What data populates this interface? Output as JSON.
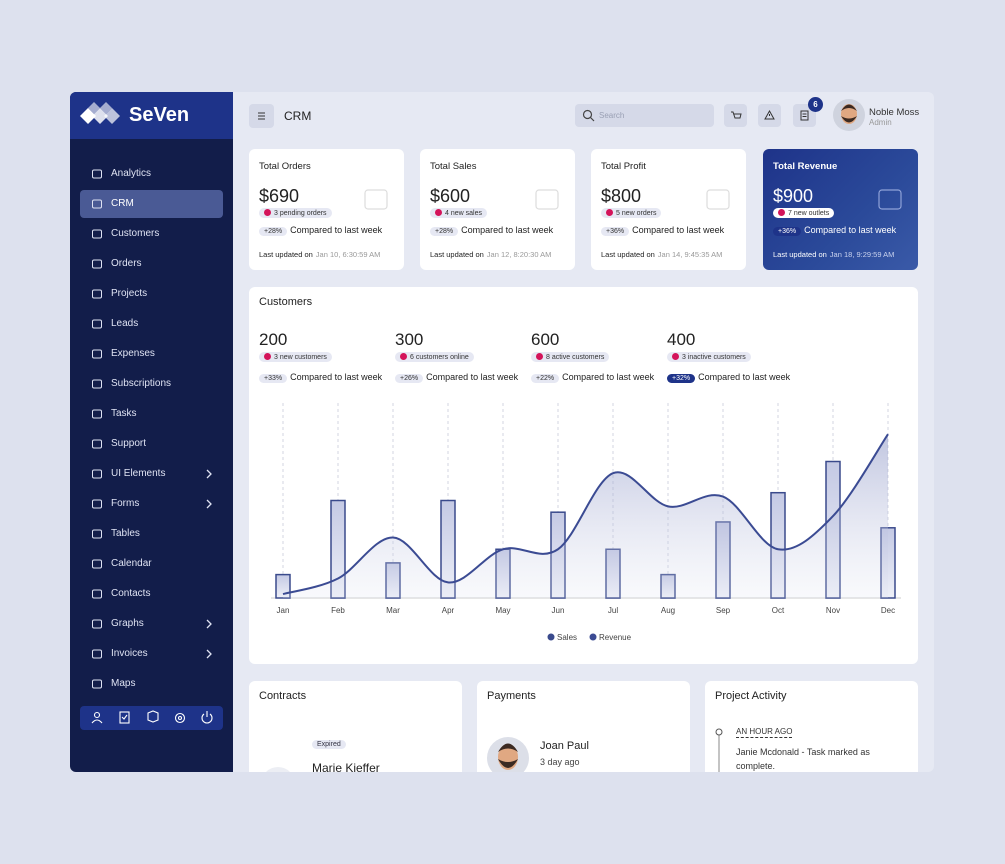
{
  "brand": "SeVen",
  "sidebar": {
    "items": [
      {
        "label": "Analytics"
      },
      {
        "label": "CRM",
        "active": true
      },
      {
        "label": "Customers"
      },
      {
        "label": "Orders"
      },
      {
        "label": "Projects"
      },
      {
        "label": "Leads"
      },
      {
        "label": "Expenses"
      },
      {
        "label": "Subscriptions"
      },
      {
        "label": "Tasks"
      },
      {
        "label": "Support"
      },
      {
        "label": "UI Elements",
        "submenu": true
      },
      {
        "label": "Forms",
        "submenu": true
      },
      {
        "label": "Tables"
      },
      {
        "label": "Calendar"
      },
      {
        "label": "Contacts"
      },
      {
        "label": "Graphs",
        "submenu": true
      },
      {
        "label": "Invoices",
        "submenu": true
      },
      {
        "label": "Maps"
      }
    ]
  },
  "header": {
    "title": "CRM",
    "search_placeholder": "Search",
    "notifications": 6,
    "user": {
      "name": "Noble Moss",
      "role": "Admin"
    }
  },
  "stats": [
    {
      "title": "Total Orders",
      "value": "$690",
      "badge": "3 pending orders",
      "change": "+28%",
      "compare": "Compared to last week",
      "updated_label": "Last updated on",
      "updated": "Jan 10, 6:30:59 AM"
    },
    {
      "title": "Total Sales",
      "value": "$600",
      "badge": "4 new sales",
      "change": "+28%",
      "compare": "Compared to last week",
      "updated_label": "Last updated on",
      "updated": "Jan 12, 8:20:30 AM"
    },
    {
      "title": "Total Profit",
      "value": "$800",
      "badge": "5 new orders",
      "change": "+36%",
      "compare": "Compared to last week",
      "updated_label": "Last updated on",
      "updated": "Jan 14, 9:45:35 AM"
    },
    {
      "title": "Total Revenue",
      "value": "$900",
      "badge": "7 new outlets",
      "change": "+36%",
      "compare": "Compared to last week",
      "updated_label": "Last updated on",
      "updated": "Jan 18, 9:29:59 AM",
      "highlight": true
    }
  ],
  "customers": {
    "title": "Customers",
    "metrics": [
      {
        "value": "200",
        "badge": "3 new customers",
        "change": "+33%",
        "compare": "Compared to last week"
      },
      {
        "value": "300",
        "badge": "6 customers online",
        "change": "+26%",
        "compare": "Compared to last week"
      },
      {
        "value": "600",
        "badge": "8 active customers",
        "change": "+22%",
        "compare": "Compared to last week"
      },
      {
        "value": "400",
        "badge": "3 inactive customers",
        "change": "+32%",
        "compare": "Compared to last week",
        "highlight": true
      }
    ]
  },
  "chart_data": {
    "type": "bar-line",
    "categories": [
      "Jan",
      "Feb",
      "Mar",
      "Apr",
      "May",
      "Jun",
      "Jul",
      "Aug",
      "Sep",
      "Oct",
      "Nov",
      "Dec"
    ],
    "series": [
      {
        "name": "Sales",
        "type": "bar",
        "color": "#3a4a8c",
        "values": [
          12,
          50,
          18,
          50,
          25,
          44,
          25,
          12,
          39,
          54,
          70,
          36
        ]
      },
      {
        "name": "Revenue",
        "type": "line",
        "color": "#3b4b93",
        "values": [
          2,
          10,
          31,
          8,
          25,
          25,
          64,
          47,
          52,
          25,
          42,
          84
        ]
      }
    ],
    "ylim": [
      0,
      100
    ],
    "grid": true
  },
  "contracts": {
    "title": "Contracts",
    "status": "Expired",
    "name": "Marie Kieffer"
  },
  "payments": {
    "title": "Payments",
    "name": "Joan Paul",
    "time": "3 day ago"
  },
  "activity": {
    "title": "Project Activity",
    "time": "AN HOUR AGO",
    "text": "Janie Mcdonald - Task marked as complete."
  }
}
